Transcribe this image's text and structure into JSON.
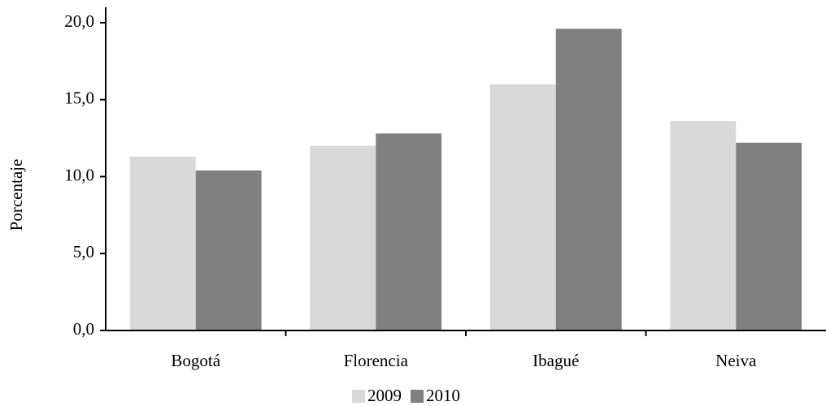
{
  "chart_data": {
    "type": "bar",
    "y_label": "Porcentaje",
    "categories": [
      "Bogotá",
      "Florencia",
      "Ibagué",
      "Neiva"
    ],
    "series": [
      {
        "name": "2009",
        "color": "#d9d9d9",
        "values": [
          11.3,
          12.0,
          16.0,
          13.6
        ]
      },
      {
        "name": "2010",
        "color": "#808080",
        "values": [
          10.4,
          12.8,
          19.6,
          12.2
        ]
      }
    ],
    "ylim": [
      0,
      21
    ],
    "yticks": [
      {
        "value": 0,
        "label": "0,0"
      },
      {
        "value": 5,
        "label": "5,0"
      },
      {
        "value": 10,
        "label": "10,0"
      },
      {
        "value": 15,
        "label": "15,0"
      },
      {
        "value": 20,
        "label": "20,0"
      }
    ],
    "grid": false,
    "legend": "bottom"
  }
}
